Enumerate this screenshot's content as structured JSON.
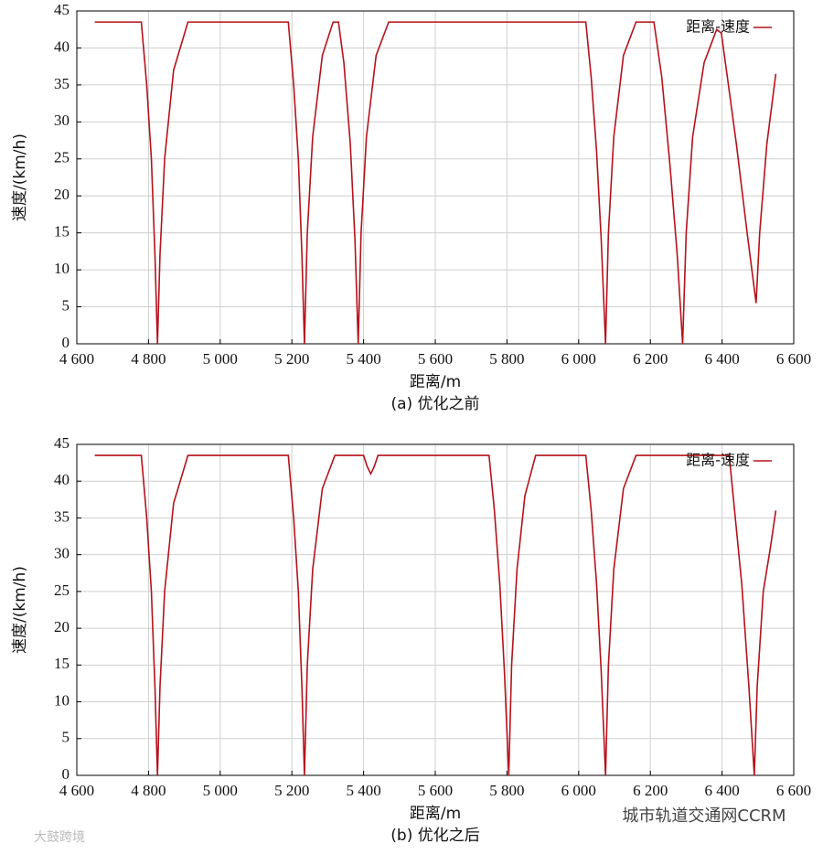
{
  "chart_data": [
    {
      "type": "line",
      "caption": "(a) 优化之前",
      "xlabel": "距离/m",
      "ylabel": "速度/(km/h)",
      "legend": "upper right",
      "grid": true,
      "xlim": [
        4600,
        6600
      ],
      "ylim": [
        0,
        45
      ],
      "xticks": [
        {
          "value": 4600,
          "label": "4 600"
        },
        {
          "value": 4800,
          "label": "4 800"
        },
        {
          "value": 5000,
          "label": "5 000"
        },
        {
          "value": 5200,
          "label": "5 200"
        },
        {
          "value": 5400,
          "label": "5 400"
        },
        {
          "value": 5600,
          "label": "5 600"
        },
        {
          "value": 5800,
          "label": "5 800"
        },
        {
          "value": 6000,
          "label": "6 000"
        },
        {
          "value": 6200,
          "label": "6 200"
        },
        {
          "value": 6400,
          "label": "6 400"
        },
        {
          "value": 6600,
          "label": "6 600"
        }
      ],
      "yticks": [
        0,
        5,
        10,
        15,
        20,
        25,
        30,
        35,
        40,
        45
      ],
      "x": [
        4650,
        4780,
        4795,
        4808,
        4818,
        4825,
        4832,
        4845,
        4870,
        4910,
        5190,
        5205,
        5218,
        5228,
        5235,
        5243,
        5258,
        5285,
        5315,
        5330,
        5345,
        5363,
        5376,
        5385,
        5393,
        5408,
        5435,
        5470,
        6020,
        6035,
        6050,
        6063,
        6075,
        6083,
        6098,
        6125,
        6160,
        6210,
        6232,
        6255,
        6275,
        6290,
        6300,
        6318,
        6350,
        6385,
        6398,
        6415,
        6440,
        6470,
        6495,
        6505,
        6525,
        6550
      ],
      "series": [
        {
          "name": "距离-速度",
          "color": "#b5121b",
          "values": [
            43.5,
            43.5,
            35,
            25,
            12,
            0,
            12,
            25,
            37,
            43.5,
            43.5,
            35,
            25,
            12,
            0,
            15,
            28,
            39,
            43.5,
            43.5,
            38,
            27,
            14,
            0,
            15,
            28,
            39,
            43.5,
            43.5,
            36,
            26,
            14,
            0,
            15,
            28,
            39,
            43.5,
            43.5,
            36,
            24,
            12,
            0,
            15,
            28,
            38,
            42.5,
            42,
            36,
            27,
            15,
            5.5,
            15,
            27,
            36.5
          ]
        }
      ]
    },
    {
      "type": "line",
      "caption": "(b) 优化之后",
      "xlabel": "距离/m",
      "ylabel": "速度/(km/h)",
      "legend": "upper right",
      "grid": true,
      "xlim": [
        4600,
        6600
      ],
      "ylim": [
        0,
        45
      ],
      "xticks": [
        {
          "value": 4600,
          "label": "4 600"
        },
        {
          "value": 4800,
          "label": "4 800"
        },
        {
          "value": 5000,
          "label": "5 000"
        },
        {
          "value": 5200,
          "label": "5 200"
        },
        {
          "value": 5400,
          "label": "5 400"
        },
        {
          "value": 5600,
          "label": "5 600"
        },
        {
          "value": 5800,
          "label": "5 800"
        },
        {
          "value": 6000,
          "label": "6 000"
        },
        {
          "value": 6200,
          "label": "6 200"
        },
        {
          "value": 6400,
          "label": "6 400"
        },
        {
          "value": 6600,
          "label": "6 600"
        }
      ],
      "yticks": [
        0,
        5,
        10,
        15,
        20,
        25,
        30,
        35,
        40,
        45
      ],
      "x": [
        4650,
        4780,
        4795,
        4808,
        4818,
        4825,
        4832,
        4845,
        4870,
        4910,
        5190,
        5205,
        5218,
        5228,
        5235,
        5243,
        5258,
        5285,
        5320,
        5400,
        5410,
        5420,
        5430,
        5440,
        5750,
        5765,
        5780,
        5793,
        5805,
        5813,
        5828,
        5850,
        5880,
        6020,
        6035,
        6050,
        6063,
        6075,
        6083,
        6098,
        6125,
        6160,
        6420,
        6435,
        6455,
        6475,
        6490,
        6498,
        6515,
        6535,
        6550
      ],
      "series": [
        {
          "name": "距离-速度",
          "color": "#b5121b",
          "values": [
            43.5,
            43.5,
            35,
            25,
            12,
            0,
            12,
            25,
            37,
            43.5,
            43.5,
            35,
            25,
            12,
            0,
            15,
            28,
            39,
            43.5,
            43.5,
            42,
            41,
            42,
            43.5,
            43.5,
            36,
            26,
            14,
            0,
            15,
            28,
            38,
            43.5,
            43.5,
            36,
            26,
            14,
            0,
            15,
            28,
            39,
            43.5,
            43.5,
            36,
            26,
            12,
            0,
            12,
            25,
            31,
            36
          ]
        }
      ]
    }
  ],
  "watermarks": [
    "城市轨道交通网CCRM",
    "大鼓跨境"
  ]
}
